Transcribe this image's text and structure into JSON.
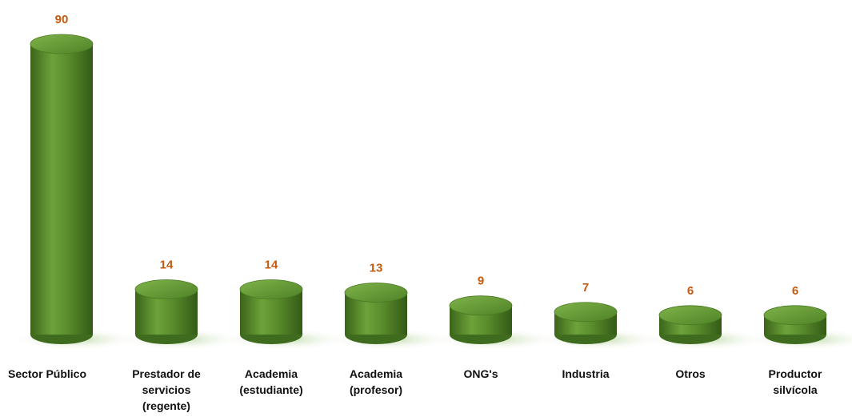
{
  "colors": {
    "bar_dark": "#3f6b1f",
    "bar_mid": "#5e9330",
    "bar_light": "#8cbf57",
    "value_label": "#c55a11",
    "shadow": "#cfe2bf"
  },
  "chart_data": {
    "type": "bar",
    "style": "3d-cylinder",
    "title": "",
    "xlabel": "",
    "ylabel": "",
    "categories": [
      [
        "Sector Público"
      ],
      [
        "Prestador de",
        "servicios",
        "(regente)"
      ],
      [
        "Academia",
        "(estudiante)"
      ],
      [
        "Academia",
        "(profesor)"
      ],
      [
        "ONG's"
      ],
      [
        "Industria"
      ],
      [
        "Otros"
      ],
      [
        "Productor",
        "silvícola"
      ]
    ],
    "values": [
      90,
      14,
      14,
      13,
      9,
      7,
      6,
      6
    ],
    "data_labels": [
      "90",
      "14",
      "14",
      "13",
      "9",
      "7",
      "6",
      "6"
    ],
    "ylim": [
      0,
      90
    ],
    "grid": false,
    "legend": "none"
  }
}
